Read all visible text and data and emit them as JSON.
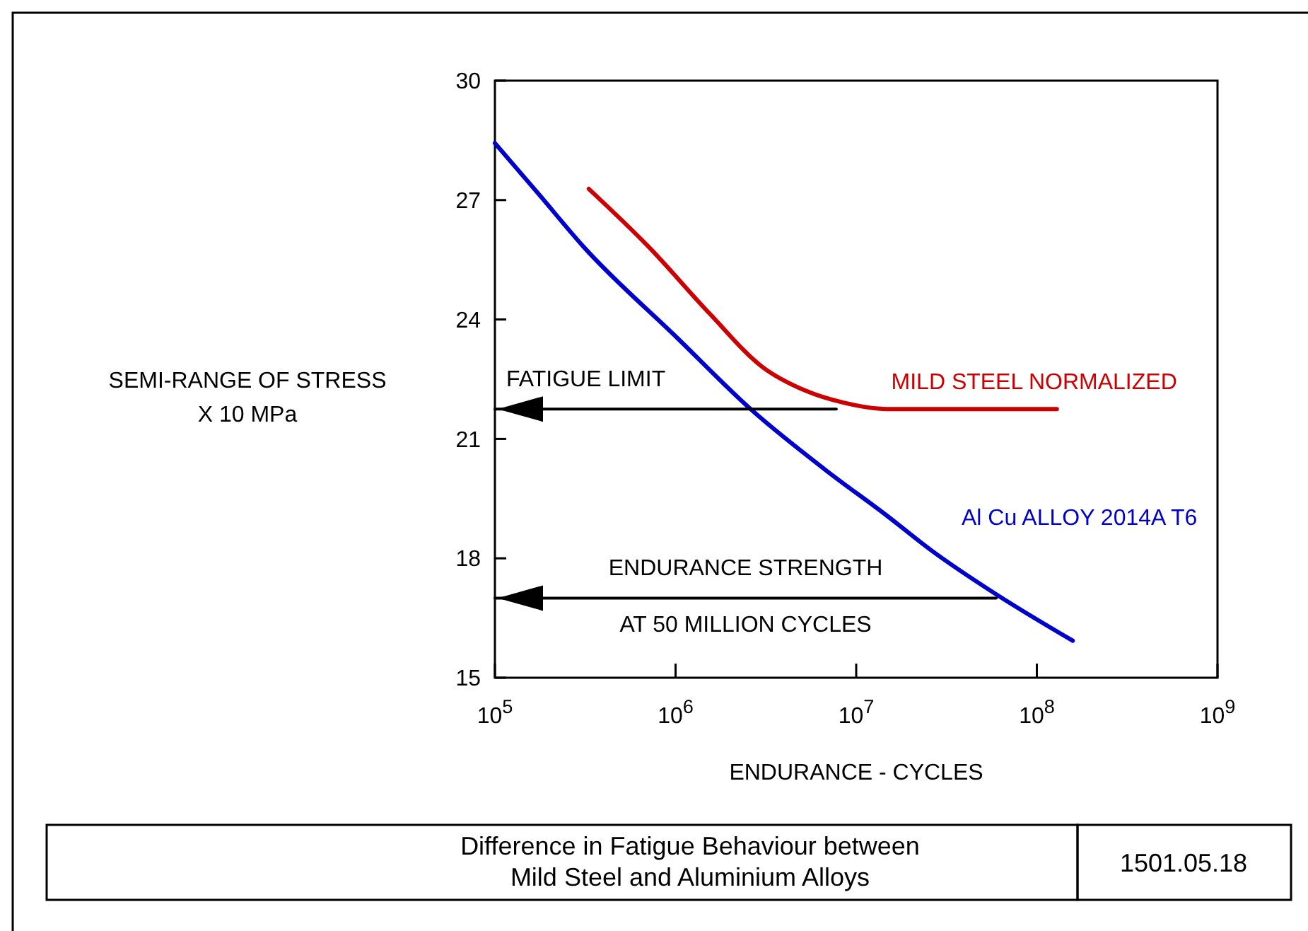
{
  "chart_data": {
    "type": "line",
    "title": "Difference in Fatigue Behaviour between\nMild Steel and Aluminium Alloys",
    "xlabel": "ENDURANCE - CYCLES",
    "ylabel": "SEMI-RANGE OF STRESS\nX 10 MPa",
    "log": "x",
    "xlim": [
      100000,
      1000000000
    ],
    "xticks": [
      {
        "value": 100000,
        "label": "10$^{5}$"
      },
      {
        "value": 1000000,
        "label": "10$^{6}$"
      },
      {
        "value": 10000000,
        "label": "10$^{7}$"
      },
      {
        "value": 100000000,
        "label": "10$^{8}$"
      },
      {
        "value": 1000000000,
        "label": "10$^{9}$"
      }
    ],
    "ylim": [
      15,
      30
    ],
    "yticks": [
      15,
      18,
      21,
      24,
      27,
      30
    ],
    "grid": false,
    "legend": false,
    "marker": "none",
    "line_style": "solid",
    "series": [
      {
        "name": "MILD STEEL NORMALIZED",
        "color": "#cc0000",
        "x": [
          331000,
          708000,
          1550000,
          3020000,
          5250000,
          8510000,
          14800000,
          129000000
        ],
        "values": [
          27.28,
          25.83,
          24.14,
          22.81,
          22.21,
          21.91,
          21.75,
          21.75
        ]
      },
      {
        "name": "Al Cu  ALLOY 2014A T6",
        "color": "#0000cc",
        "x": [
          100000,
          174000,
          309000,
          1020000,
          2630000,
          6760000,
          14800000,
          25700000,
          60300000,
          158000000
        ],
        "values": [
          28.43,
          27.16,
          25.83,
          23.54,
          21.73,
          20.22,
          19.07,
          18.22,
          17.08,
          15.93
        ]
      },
      {
        "color": "#000000",
        "x": [
          7760000,
          100000
        ],
        "values": [
          21.75,
          21.75
        ]
      },
      {
        "color": "#000000",
        "x": [
          59600000,
          100000
        ],
        "values": [
          17.0,
          17.0
        ]
      }
    ],
    "annotations": [
      "FATIGUE LIMIT",
      "ENDURANCE STRENGTH\nAT 50 MILLION CYCLES",
      "1501.05.18"
    ]
  }
}
